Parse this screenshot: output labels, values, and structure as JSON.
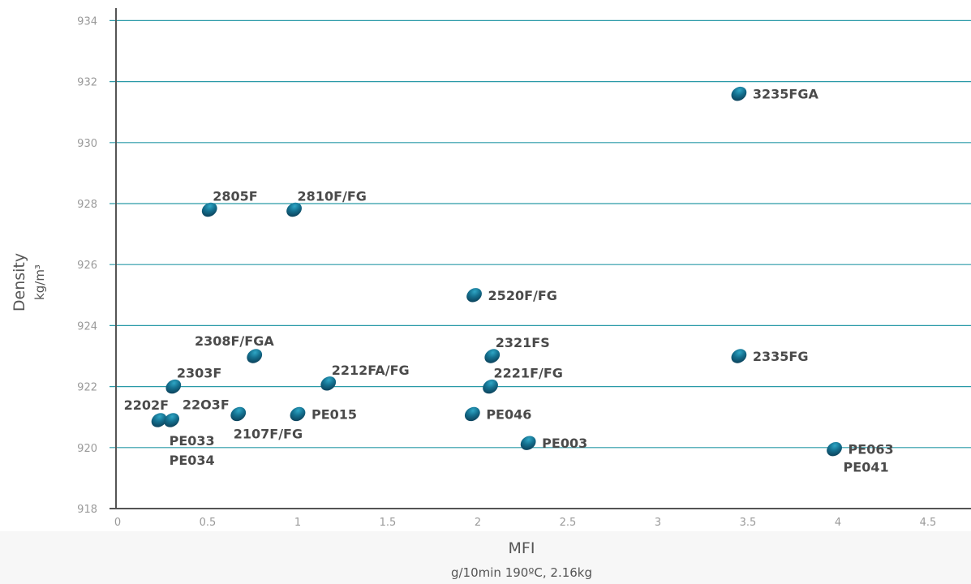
{
  "chart_data": {
    "type": "scatter",
    "xlabel": "MFI",
    "xlabel_sub": "g/10min 190ºC, 2.16kg",
    "ylabel": "Density",
    "ylabel_sub": "kg/m³",
    "xlim": [
      0,
      4.75
    ],
    "ylim": [
      918,
      934
    ],
    "x_ticks": [
      {
        "value": 0,
        "label": "0"
      },
      {
        "value": 0.5,
        "label": "0.5"
      },
      {
        "value": 1,
        "label": "1"
      },
      {
        "value": 1.5,
        "label": "1.5"
      },
      {
        "value": 2,
        "label": "2"
      },
      {
        "value": 2.5,
        "label": "2.5"
      },
      {
        "value": 3,
        "label": "3"
      },
      {
        "value": 3.5,
        "label": "3.5"
      },
      {
        "value": 4,
        "label": "4"
      },
      {
        "value": 4.5,
        "label": "4.5"
      }
    ],
    "y_ticks": [
      {
        "value": 918,
        "label": "918"
      },
      {
        "value": 920,
        "label": "920"
      },
      {
        "value": 922,
        "label": "922"
      },
      {
        "value": 924,
        "label": "924"
      },
      {
        "value": 926,
        "label": "926"
      },
      {
        "value": 928,
        "label": "928"
      },
      {
        "value": 930,
        "label": "930"
      },
      {
        "value": 932,
        "label": "932"
      },
      {
        "value": 934,
        "label": "934"
      }
    ],
    "grid": "horizontal",
    "colors": {
      "marker_dark": "#0b3c54",
      "marker_mid": "#14708f",
      "marker_light": "#2fa6c5",
      "gridline": "#2a9aa8",
      "axis": "#555555",
      "label": "#4a4a4a",
      "tick": "#9a9a9a"
    },
    "points": [
      {
        "x": 3.45,
        "y": 931.6,
        "label": "3235FGA",
        "label_pos": "right"
      },
      {
        "x": 0.51,
        "y": 927.8,
        "label": "2805F",
        "label_pos": "above-right"
      },
      {
        "x": 0.98,
        "y": 927.8,
        "label": "2810F/FG",
        "label_pos": "above-right"
      },
      {
        "x": 1.98,
        "y": 925.0,
        "label": "2520F/FG",
        "label_pos": "right"
      },
      {
        "x": 0.76,
        "y": 923.0,
        "label": "2308F/FGA",
        "label_pos": "above-left"
      },
      {
        "x": 2.08,
        "y": 923.0,
        "label": "2321FS",
        "label_pos": "above-right"
      },
      {
        "x": 3.45,
        "y": 923.0,
        "label": "2335FG",
        "label_pos": "right"
      },
      {
        "x": 1.17,
        "y": 922.1,
        "label": "2212FA/FG",
        "label_pos": "above-right"
      },
      {
        "x": 2.07,
        "y": 922.0,
        "label": "2221F/FG",
        "label_pos": "above-right"
      },
      {
        "x": 0.31,
        "y": 922.0,
        "label": "2303F",
        "label_pos": "above-right"
      },
      {
        "x": 0.31,
        "y": 922.0,
        "label": "22O3F",
        "label_pos": "below-right"
      },
      {
        "x": 0.23,
        "y": 920.9,
        "label": "2202F",
        "label_pos": "above-left"
      },
      {
        "x": 0.3,
        "y": 920.9,
        "label": "PE033",
        "label_pos": "below"
      },
      {
        "x": 0.3,
        "y": 920.9,
        "label": "PE034",
        "label_pos": "below2"
      },
      {
        "x": 0.67,
        "y": 921.1,
        "label": "2107F/FG",
        "label_pos": "below-right"
      },
      {
        "x": 1.0,
        "y": 921.1,
        "label": "PE015",
        "label_pos": "right"
      },
      {
        "x": 1.97,
        "y": 921.1,
        "label": "PE046",
        "label_pos": "right"
      },
      {
        "x": 2.28,
        "y": 920.15,
        "label": "PE003",
        "label_pos": "right"
      },
      {
        "x": 3.98,
        "y": 919.95,
        "label": "PE063",
        "label_pos": "right"
      },
      {
        "x": 3.98,
        "y": 919.95,
        "label": "PE041",
        "label_pos": "below-right"
      }
    ]
  }
}
